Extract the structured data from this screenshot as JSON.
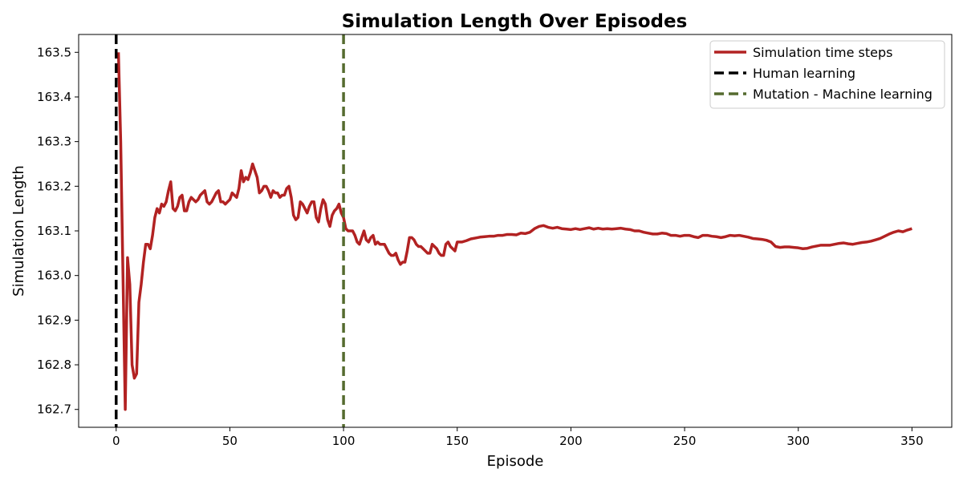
{
  "chart_data": {
    "type": "line",
    "title": "Simulation Length Over Episodes",
    "xlabel": "Episode",
    "ylabel": "Simulation Length",
    "xlim": [
      -16.5,
      367.5
    ],
    "ylim": [
      162.66,
      163.54
    ],
    "xticks": [
      0,
      50,
      100,
      150,
      200,
      250,
      300,
      350
    ],
    "yticks": [
      162.7,
      162.8,
      162.9,
      163.0,
      163.1,
      163.2,
      163.3,
      163.4,
      163.5
    ],
    "grid": false,
    "legend_position": "top-right",
    "series": [
      {
        "name": "Simulation time steps",
        "color": "#b22222",
        "points": [
          [
            1,
            163.5
          ],
          [
            2,
            163.3
          ],
          [
            3,
            163.0
          ],
          [
            4,
            162.7
          ],
          [
            5,
            163.04
          ],
          [
            6,
            162.98
          ],
          [
            7,
            162.8
          ],
          [
            8,
            162.77
          ],
          [
            9,
            162.78
          ],
          [
            10,
            162.94
          ],
          [
            11,
            162.98
          ],
          [
            12,
            163.03
          ],
          [
            13,
            163.07
          ],
          [
            14,
            163.07
          ],
          [
            15,
            163.06
          ],
          [
            16,
            163.09
          ],
          [
            17,
            163.13
          ],
          [
            18,
            163.15
          ],
          [
            19,
            163.14
          ],
          [
            20,
            163.16
          ],
          [
            21,
            163.155
          ],
          [
            22,
            163.165
          ],
          [
            23,
            163.19
          ],
          [
            24,
            163.21
          ],
          [
            25,
            163.15
          ],
          [
            26,
            163.145
          ],
          [
            27,
            163.155
          ],
          [
            28,
            163.175
          ],
          [
            29,
            163.18
          ],
          [
            30,
            163.145
          ],
          [
            31,
            163.145
          ],
          [
            32,
            163.165
          ],
          [
            33,
            163.175
          ],
          [
            34,
            163.17
          ],
          [
            35,
            163.165
          ],
          [
            36,
            163.17
          ],
          [
            37,
            163.18
          ],
          [
            38,
            163.185
          ],
          [
            39,
            163.19
          ],
          [
            40,
            163.165
          ],
          [
            41,
            163.16
          ],
          [
            42,
            163.165
          ],
          [
            43,
            163.175
          ],
          [
            44,
            163.185
          ],
          [
            45,
            163.19
          ],
          [
            46,
            163.165
          ],
          [
            47,
            163.165
          ],
          [
            48,
            163.16
          ],
          [
            49,
            163.165
          ],
          [
            50,
            163.17
          ],
          [
            51,
            163.185
          ],
          [
            52,
            163.18
          ],
          [
            53,
            163.175
          ],
          [
            54,
            163.195
          ],
          [
            55,
            163.235
          ],
          [
            56,
            163.21
          ],
          [
            57,
            163.22
          ],
          [
            58,
            163.215
          ],
          [
            59,
            163.23
          ],
          [
            60,
            163.25
          ],
          [
            61,
            163.235
          ],
          [
            62,
            163.22
          ],
          [
            63,
            163.185
          ],
          [
            64,
            163.19
          ],
          [
            65,
            163.2
          ],
          [
            66,
            163.2
          ],
          [
            67,
            163.19
          ],
          [
            68,
            163.175
          ],
          [
            69,
            163.19
          ],
          [
            70,
            163.185
          ],
          [
            71,
            163.185
          ],
          [
            72,
            163.175
          ],
          [
            73,
            163.18
          ],
          [
            74,
            163.18
          ],
          [
            75,
            163.195
          ],
          [
            76,
            163.2
          ],
          [
            77,
            163.175
          ],
          [
            78,
            163.135
          ],
          [
            79,
            163.125
          ],
          [
            80,
            163.13
          ],
          [
            81,
            163.165
          ],
          [
            82,
            163.16
          ],
          [
            83,
            163.15
          ],
          [
            84,
            163.14
          ],
          [
            85,
            163.155
          ],
          [
            86,
            163.165
          ],
          [
            87,
            163.165
          ],
          [
            88,
            163.13
          ],
          [
            89,
            163.12
          ],
          [
            90,
            163.15
          ],
          [
            91,
            163.17
          ],
          [
            92,
            163.16
          ],
          [
            93,
            163.125
          ],
          [
            94,
            163.11
          ],
          [
            95,
            163.135
          ],
          [
            96,
            163.145
          ],
          [
            97,
            163.15
          ],
          [
            98,
            163.16
          ],
          [
            99,
            163.14
          ],
          [
            100,
            163.13
          ],
          [
            101,
            163.105
          ],
          [
            102,
            163.1
          ],
          [
            103,
            163.1
          ],
          [
            104,
            163.1
          ],
          [
            105,
            163.09
          ],
          [
            106,
            163.075
          ],
          [
            107,
            163.07
          ],
          [
            108,
            163.085
          ],
          [
            109,
            163.1
          ],
          [
            110,
            163.08
          ],
          [
            111,
            163.075
          ],
          [
            112,
            163.085
          ],
          [
            113,
            163.09
          ],
          [
            114,
            163.07
          ],
          [
            115,
            163.075
          ],
          [
            116,
            163.07
          ],
          [
            117,
            163.07
          ],
          [
            118,
            163.07
          ],
          [
            119,
            163.06
          ],
          [
            120,
            163.05
          ],
          [
            121,
            163.045
          ],
          [
            122,
            163.045
          ],
          [
            123,
            163.05
          ],
          [
            124,
            163.035
          ],
          [
            125,
            163.025
          ],
          [
            126,
            163.03
          ],
          [
            127,
            163.03
          ],
          [
            128,
            163.055
          ],
          [
            129,
            163.085
          ],
          [
            130,
            163.085
          ],
          [
            131,
            163.08
          ],
          [
            132,
            163.07
          ],
          [
            133,
            163.065
          ],
          [
            134,
            163.065
          ],
          [
            135,
            163.06
          ],
          [
            136,
            163.055
          ],
          [
            137,
            163.05
          ],
          [
            138,
            163.05
          ],
          [
            139,
            163.07
          ],
          [
            140,
            163.065
          ],
          [
            141,
            163.06
          ],
          [
            142,
            163.05
          ],
          [
            143,
            163.045
          ],
          [
            144,
            163.045
          ],
          [
            145,
            163.07
          ],
          [
            146,
            163.075
          ],
          [
            147,
            163.065
          ],
          [
            148,
            163.06
          ],
          [
            149,
            163.055
          ],
          [
            150,
            163.075
          ],
          [
            152,
            163.075
          ],
          [
            154,
            163.078
          ],
          [
            156,
            163.082
          ],
          [
            158,
            163.084
          ],
          [
            160,
            163.086
          ],
          [
            162,
            163.087
          ],
          [
            164,
            163.088
          ],
          [
            166,
            163.088
          ],
          [
            168,
            163.09
          ],
          [
            170,
            163.09
          ],
          [
            172,
            163.092
          ],
          [
            174,
            163.092
          ],
          [
            176,
            163.091
          ],
          [
            178,
            163.095
          ],
          [
            180,
            163.094
          ],
          [
            182,
            163.097
          ],
          [
            184,
            163.105
          ],
          [
            186,
            163.11
          ],
          [
            188,
            163.112
          ],
          [
            190,
            163.108
          ],
          [
            192,
            163.106
          ],
          [
            194,
            163.108
          ],
          [
            196,
            163.105
          ],
          [
            198,
            163.104
          ],
          [
            200,
            163.103
          ],
          [
            202,
            163.105
          ],
          [
            204,
            163.103
          ],
          [
            206,
            163.105
          ],
          [
            208,
            163.107
          ],
          [
            210,
            163.104
          ],
          [
            212,
            163.106
          ],
          [
            214,
            163.104
          ],
          [
            216,
            163.105
          ],
          [
            218,
            163.104
          ],
          [
            220,
            163.105
          ],
          [
            222,
            163.106
          ],
          [
            224,
            163.104
          ],
          [
            226,
            163.103
          ],
          [
            228,
            163.1
          ],
          [
            230,
            163.1
          ],
          [
            232,
            163.097
          ],
          [
            234,
            163.095
          ],
          [
            236,
            163.093
          ],
          [
            238,
            163.093
          ],
          [
            240,
            163.095
          ],
          [
            242,
            163.094
          ],
          [
            244,
            163.09
          ],
          [
            246,
            163.09
          ],
          [
            248,
            163.088
          ],
          [
            250,
            163.09
          ],
          [
            252,
            163.09
          ],
          [
            254,
            163.087
          ],
          [
            256,
            163.085
          ],
          [
            258,
            163.09
          ],
          [
            260,
            163.09
          ],
          [
            262,
            163.088
          ],
          [
            264,
            163.087
          ],
          [
            266,
            163.085
          ],
          [
            268,
            163.087
          ],
          [
            270,
            163.09
          ],
          [
            272,
            163.089
          ],
          [
            274,
            163.09
          ],
          [
            276,
            163.088
          ],
          [
            278,
            163.086
          ],
          [
            280,
            163.083
          ],
          [
            282,
            163.082
          ],
          [
            284,
            163.081
          ],
          [
            286,
            163.079
          ],
          [
            288,
            163.075
          ],
          [
            290,
            163.065
          ],
          [
            292,
            163.063
          ],
          [
            294,
            163.064
          ],
          [
            296,
            163.064
          ],
          [
            298,
            163.063
          ],
          [
            300,
            163.062
          ],
          [
            302,
            163.06
          ],
          [
            304,
            163.061
          ],
          [
            306,
            163.064
          ],
          [
            308,
            163.066
          ],
          [
            310,
            163.068
          ],
          [
            312,
            163.068
          ],
          [
            314,
            163.068
          ],
          [
            316,
            163.07
          ],
          [
            318,
            163.072
          ],
          [
            320,
            163.073
          ],
          [
            322,
            163.071
          ],
          [
            324,
            163.07
          ],
          [
            326,
            163.072
          ],
          [
            328,
            163.074
          ],
          [
            330,
            163.075
          ],
          [
            332,
            163.077
          ],
          [
            334,
            163.08
          ],
          [
            336,
            163.083
          ],
          [
            338,
            163.088
          ],
          [
            340,
            163.093
          ],
          [
            342,
            163.097
          ],
          [
            344,
            163.1
          ],
          [
            346,
            163.098
          ],
          [
            348,
            163.102
          ],
          [
            350,
            163.105
          ]
        ]
      },
      {
        "name": "Human learning",
        "color": "#000000",
        "type": "vline",
        "x": 0
      },
      {
        "name": "Mutation - Machine learning",
        "color": "#556b2f",
        "type": "vline",
        "x": 100
      }
    ]
  }
}
